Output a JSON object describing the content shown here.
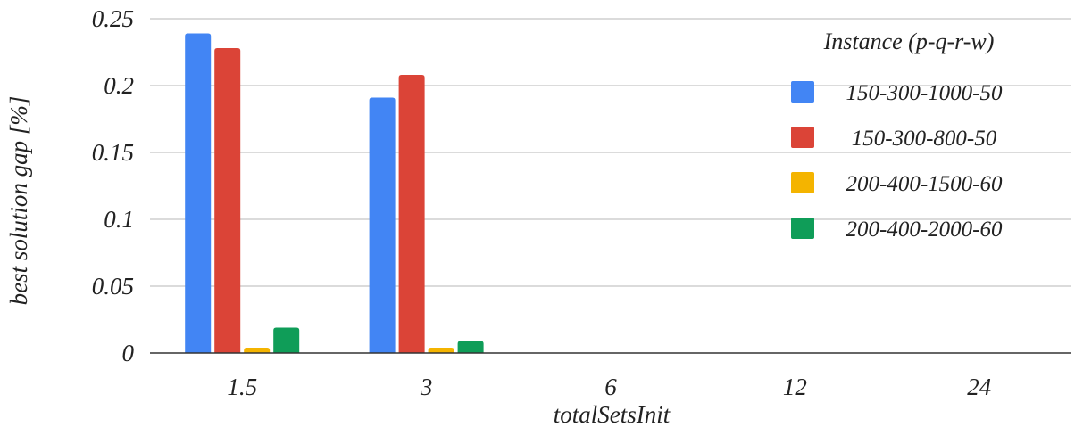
{
  "chart_data": {
    "type": "bar",
    "title": "",
    "xlabel": "totalSetsInit",
    "ylabel": "best solution gap [%]",
    "categories": [
      "1.5",
      "3",
      "6",
      "12",
      "24"
    ],
    "ylim": [
      0,
      0.25
    ],
    "yticks": [
      "0",
      "0.05",
      "0.1",
      "0.15",
      "0.2",
      "0.25"
    ],
    "ytick_values": [
      0,
      0.05,
      0.1,
      0.15,
      0.2,
      0.25
    ],
    "grid": true,
    "legend_title": "Instance (p-q-r-w)",
    "legend_position": "top-right",
    "series": [
      {
        "name": "150-300-1000-50",
        "color": "#4285f4",
        "values": [
          0.239,
          0.191,
          0,
          0,
          0
        ]
      },
      {
        "name": "150-300-800-50",
        "color": "#db4437",
        "values": [
          0.228,
          0.208,
          0,
          0,
          0
        ]
      },
      {
        "name": "200-400-1500-60",
        "color": "#f4b400",
        "values": [
          0.004,
          0.004,
          0,
          0,
          0
        ]
      },
      {
        "name": "200-400-2000-60",
        "color": "#0f9d58",
        "values": [
          0.019,
          0.009,
          0,
          0,
          0
        ]
      }
    ]
  }
}
